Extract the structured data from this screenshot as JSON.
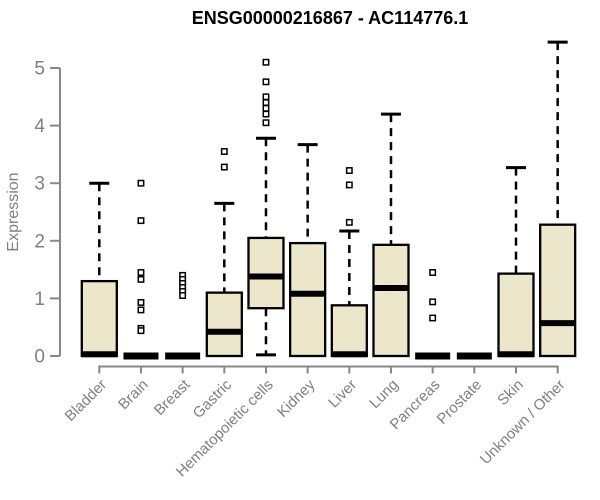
{
  "chart_data": {
    "type": "boxplot",
    "title": "ENSG00000216867 - AC114776.1",
    "ylabel": "Expression",
    "xlabel": "",
    "ylim": [
      0,
      5.5
    ],
    "yticks": [
      0,
      1,
      2,
      3,
      4,
      5
    ],
    "grid": false,
    "legend": "none",
    "categories": [
      "Bladder",
      "Brain",
      "Breast",
      "Gastric",
      "Hematopoietic cells",
      "Kidney",
      "Liver",
      "Lung",
      "Pancreas",
      "Prostate",
      "Skin",
      "Unknown / Other"
    ],
    "boxes": [
      {
        "category": "Bladder",
        "whisker_low": 0,
        "q1": 0,
        "median": 0.03,
        "q3": 1.3,
        "whisker_high": 3.0,
        "outliers": []
      },
      {
        "category": "Brain",
        "whisker_low": 0,
        "q1": 0,
        "median": 0,
        "q3": 0,
        "whisker_high": 0,
        "outliers": [
          3.0,
          2.35,
          1.45,
          1.33,
          0.93,
          0.8,
          0.48,
          0.44
        ]
      },
      {
        "category": "Breast",
        "whisker_low": 0,
        "q1": 0,
        "median": 0,
        "q3": 0,
        "whisker_high": 0,
        "outliers": [
          1.4,
          1.33,
          1.26,
          1.19,
          1.12,
          1.05
        ]
      },
      {
        "category": "Gastric",
        "whisker_low": 0,
        "q1": 0,
        "median": 0.42,
        "q3": 1.1,
        "whisker_high": 2.65,
        "outliers": [
          3.55,
          3.28
        ]
      },
      {
        "category": "Hematopoietic cells",
        "whisker_low": 0.02,
        "q1": 0.83,
        "median": 1.38,
        "q3": 2.05,
        "whisker_high": 3.78,
        "outliers": [
          5.1,
          4.76,
          4.5,
          4.4,
          4.3,
          4.2,
          4.05
        ]
      },
      {
        "category": "Kidney",
        "whisker_low": 0,
        "q1": 0,
        "median": 1.08,
        "q3": 1.96,
        "whisker_high": 3.67,
        "outliers": []
      },
      {
        "category": "Liver",
        "whisker_low": 0,
        "q1": 0,
        "median": 0.03,
        "q3": 0.88,
        "whisker_high": 2.17,
        "outliers": [
          3.22,
          2.97,
          2.32
        ]
      },
      {
        "category": "Lung",
        "whisker_low": 0,
        "q1": 0,
        "median": 1.18,
        "q3": 1.93,
        "whisker_high": 4.2,
        "outliers": []
      },
      {
        "category": "Pancreas",
        "whisker_low": 0,
        "q1": 0,
        "median": 0,
        "q3": 0,
        "whisker_high": 0,
        "outliers": [
          1.45,
          0.94,
          0.66
        ]
      },
      {
        "category": "Prostate",
        "whisker_low": 0,
        "q1": 0,
        "median": 0,
        "q3": 0,
        "whisker_high": 0,
        "outliers": []
      },
      {
        "category": "Skin",
        "whisker_low": 0,
        "q1": 0,
        "median": 0.03,
        "q3": 1.43,
        "whisker_high": 3.27,
        "outliers": []
      },
      {
        "category": "Unknown / Other",
        "whisker_low": 0,
        "q1": 0,
        "median": 0.57,
        "q3": 2.28,
        "whisker_high": 5.45,
        "outliers": []
      }
    ],
    "colors": {
      "box_fill": "#ECE7CB",
      "box_border": "#000000",
      "median": "#000000",
      "whisker": "#000000",
      "outlier_fill": "#FFFFFF",
      "outlier_border": "#000000",
      "axis": "#878787",
      "tick_label": "#808080",
      "title": "#000000",
      "background": "#FFFFFF"
    }
  }
}
